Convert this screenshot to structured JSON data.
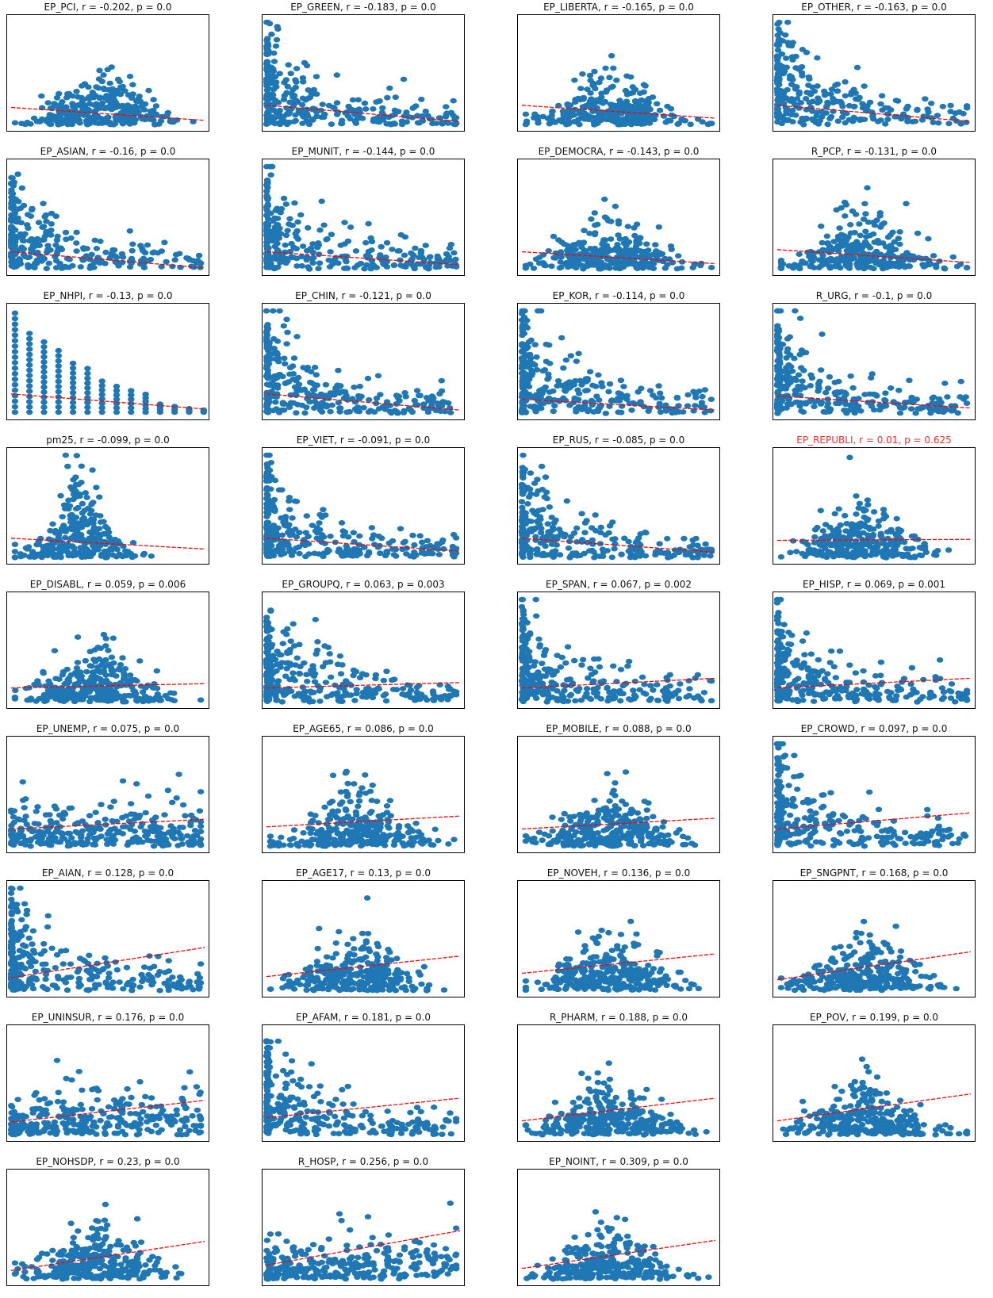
{
  "chart_data": [
    {
      "type": "scatter",
      "title": "EP_PCI, r = -0.202, p = 0.0",
      "r": -0.202,
      "p": 0.0,
      "shape": "hump",
      "trend": [
        0.18,
        0.06
      ],
      "significant": true
    },
    {
      "type": "scatter",
      "title": "EP_GREEN, r = -0.183, p = 0.0",
      "r": -0.183,
      "p": 0.0,
      "shape": "skew",
      "trend": [
        0.2,
        0.05
      ],
      "significant": true
    },
    {
      "type": "scatter",
      "title": "EP_LIBERTA, r = -0.165, p = 0.0",
      "r": -0.165,
      "p": 0.0,
      "shape": "hump",
      "trend": [
        0.2,
        0.08
      ],
      "significant": true
    },
    {
      "type": "scatter",
      "title": "EP_OTHER, r = -0.163, p = 0.0",
      "r": -0.163,
      "p": 0.0,
      "shape": "skew",
      "trend": [
        0.2,
        0.05
      ],
      "significant": true
    },
    {
      "type": "scatter",
      "title": "EP_ASIAN, r = -0.16, p = 0.0",
      "r": -0.16,
      "p": 0.0,
      "shape": "skew",
      "trend": [
        0.18,
        0.03
      ],
      "significant": true
    },
    {
      "type": "scatter",
      "title": "EP_MUNIT, r = -0.144, p = 0.0",
      "r": -0.144,
      "p": 0.0,
      "shape": "skew",
      "trend": [
        0.18,
        0.06
      ],
      "significant": true
    },
    {
      "type": "scatter",
      "title": "EP_DEMOCRA, r = -0.143, p = 0.0",
      "r": -0.143,
      "p": 0.0,
      "shape": "hump",
      "trend": [
        0.18,
        0.07
      ],
      "significant": true
    },
    {
      "type": "scatter",
      "title": "R_PCP, r = -0.131, p = 0.0",
      "r": -0.131,
      "p": 0.0,
      "shape": "hump",
      "trend": [
        0.2,
        0.08
      ],
      "significant": true
    },
    {
      "type": "scatter",
      "title": "EP_NHPI, r = -0.13, p = 0.0",
      "r": -0.13,
      "p": 0.0,
      "shape": "columns",
      "trend": [
        0.2,
        0.06
      ],
      "significant": true
    },
    {
      "type": "scatter",
      "title": "EP_CHIN, r = -0.121, p = 0.0",
      "r": -0.121,
      "p": 0.0,
      "shape": "skew",
      "trend": [
        0.2,
        0.05
      ],
      "significant": true
    },
    {
      "type": "scatter",
      "title": "EP_KOR, r = -0.114, p = 0.0",
      "r": -0.114,
      "p": 0.0,
      "shape": "skew",
      "trend": [
        0.15,
        0.05
      ],
      "significant": true
    },
    {
      "type": "scatter",
      "title": "R_URG, r = -0.1, p = 0.0",
      "r": -0.1,
      "p": 0.0,
      "shape": "skew",
      "trend": [
        0.18,
        0.07
      ],
      "significant": true
    },
    {
      "type": "scatter",
      "title": "pm25, r = -0.099, p = 0.0",
      "r": -0.099,
      "p": 0.0,
      "shape": "peak",
      "trend": [
        0.2,
        0.1
      ],
      "significant": true
    },
    {
      "type": "scatter",
      "title": "EP_VIET, r = -0.091, p = 0.0",
      "r": -0.091,
      "p": 0.0,
      "shape": "skew",
      "trend": [
        0.2,
        0.08
      ],
      "significant": true
    },
    {
      "type": "scatter",
      "title": "EP_RUS, r = -0.085, p = 0.0",
      "r": -0.085,
      "p": 0.0,
      "shape": "skew",
      "trend": [
        0.2,
        0.07
      ],
      "significant": true
    },
    {
      "type": "scatter",
      "title": "EP_REPUBLI, r = 0.01, p = 0.625",
      "r": 0.01,
      "p": 0.625,
      "shape": "hump",
      "trend": [
        0.18,
        0.19
      ],
      "significant": false
    },
    {
      "type": "scatter",
      "title": "EP_DISABL, r = 0.059, p = 0.006",
      "r": 0.059,
      "p": 0.006,
      "shape": "hump",
      "trend": [
        0.15,
        0.19
      ],
      "significant": true
    },
    {
      "type": "scatter",
      "title": "EP_GROUPQ, r = 0.063, p = 0.003",
      "r": 0.063,
      "p": 0.003,
      "shape": "skew",
      "trend": [
        0.15,
        0.2
      ],
      "significant": true
    },
    {
      "type": "scatter",
      "title": "EP_SPAN, r = 0.067, p = 0.002",
      "r": 0.067,
      "p": 0.002,
      "shape": "skew",
      "trend": [
        0.15,
        0.24
      ],
      "significant": true
    },
    {
      "type": "scatter",
      "title": "EP_HISP, r = 0.069, p = 0.001",
      "r": 0.069,
      "p": 0.001,
      "shape": "skew",
      "trend": [
        0.15,
        0.24
      ],
      "significant": true
    },
    {
      "type": "scatter",
      "title": "EP_UNEMP, r = 0.075, p = 0.0",
      "r": 0.075,
      "p": 0.0,
      "shape": "wide",
      "trend": [
        0.18,
        0.27
      ],
      "significant": true
    },
    {
      "type": "scatter",
      "title": "EP_AGE65, r = 0.086, p = 0.0",
      "r": 0.086,
      "p": 0.0,
      "shape": "hump",
      "trend": [
        0.2,
        0.3
      ],
      "significant": true
    },
    {
      "type": "scatter",
      "title": "EP_MOBILE, r = 0.088, p = 0.0",
      "r": 0.088,
      "p": 0.0,
      "shape": "hump",
      "trend": [
        0.18,
        0.28
      ],
      "significant": true
    },
    {
      "type": "scatter",
      "title": "EP_CROWD, r = 0.097, p = 0.0",
      "r": 0.097,
      "p": 0.0,
      "shape": "skew",
      "trend": [
        0.18,
        0.33
      ],
      "significant": true
    },
    {
      "type": "scatter",
      "title": "EP_AIAN, r = 0.128, p = 0.0",
      "r": 0.128,
      "p": 0.0,
      "shape": "skew",
      "trend": [
        0.14,
        0.42
      ],
      "significant": true
    },
    {
      "type": "scatter",
      "title": "EP_AGE17, r = 0.13, p = 0.0",
      "r": 0.13,
      "p": 0.0,
      "shape": "hump",
      "trend": [
        0.15,
        0.34
      ],
      "significant": true
    },
    {
      "type": "scatter",
      "title": "EP_NOVEH, r = 0.136, p = 0.0",
      "r": 0.136,
      "p": 0.0,
      "shape": "hump",
      "trend": [
        0.18,
        0.36
      ],
      "significant": true
    },
    {
      "type": "scatter",
      "title": "EP_SNGPNT, r = 0.168, p = 0.0",
      "r": 0.168,
      "p": 0.0,
      "shape": "hump",
      "trend": [
        0.12,
        0.38
      ],
      "significant": true
    },
    {
      "type": "scatter",
      "title": "EP_UNINSUR, r = 0.176, p = 0.0",
      "r": 0.176,
      "p": 0.0,
      "shape": "wide",
      "trend": [
        0.14,
        0.34
      ],
      "significant": true
    },
    {
      "type": "scatter",
      "title": "EP_AFAM, r = 0.181, p = 0.0",
      "r": 0.181,
      "p": 0.0,
      "shape": "skew",
      "trend": [
        0.18,
        0.36
      ],
      "significant": true
    },
    {
      "type": "scatter",
      "title": "R_PHARM, r = 0.188, p = 0.0",
      "r": 0.188,
      "p": 0.0,
      "shape": "hump",
      "trend": [
        0.15,
        0.36
      ],
      "significant": true
    },
    {
      "type": "scatter",
      "title": "EP_POV, r = 0.199, p = 0.0",
      "r": 0.199,
      "p": 0.0,
      "shape": "hump",
      "trend": [
        0.15,
        0.4
      ],
      "significant": true
    },
    {
      "type": "scatter",
      "title": "EP_NOHSDP, r = 0.23, p = 0.0",
      "r": 0.23,
      "p": 0.0,
      "shape": "hump",
      "trend": [
        0.1,
        0.37
      ],
      "significant": true
    },
    {
      "type": "scatter",
      "title": "R_HOSP, r = 0.256, p = 0.0",
      "r": 0.256,
      "p": 0.0,
      "shape": "wide",
      "trend": [
        0.15,
        0.47
      ],
      "significant": true
    },
    {
      "type": "scatter",
      "title": "EP_NOINT, r = 0.309, p = 0.0",
      "r": 0.309,
      "p": 0.0,
      "shape": "hump",
      "trend": [
        0.12,
        0.38
      ],
      "significant": true
    }
  ],
  "colors": {
    "marker": "#1f77b4",
    "fit_line": "#ff0000",
    "flag_title": "#ff2a2a",
    "frame": "#000000"
  },
  "grid": false,
  "ticks": false
}
